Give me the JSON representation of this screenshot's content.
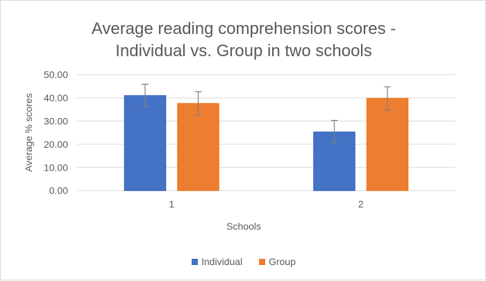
{
  "chart_data": {
    "type": "bar",
    "title_lines": [
      "Average reading comprehension scores -",
      "Individual vs. Group in two schools"
    ],
    "xlabel": "Schools",
    "ylabel": "Average % scores",
    "categories": [
      "1",
      "2"
    ],
    "ylim": [
      0,
      50
    ],
    "yticks": [
      "0.00",
      "10.00",
      "20.00",
      "30.00",
      "40.00",
      "50.00"
    ],
    "grid": true,
    "legend_position": "bottom",
    "series": [
      {
        "name": "Individual",
        "color": "#4472c4",
        "values": [
          41.0,
          25.3
        ],
        "errors": [
          4.9,
          5.0
        ]
      },
      {
        "name": "Group",
        "color": "#ed7d31",
        "values": [
          37.6,
          39.8
        ],
        "errors": [
          5.1,
          5.0
        ]
      }
    ]
  }
}
